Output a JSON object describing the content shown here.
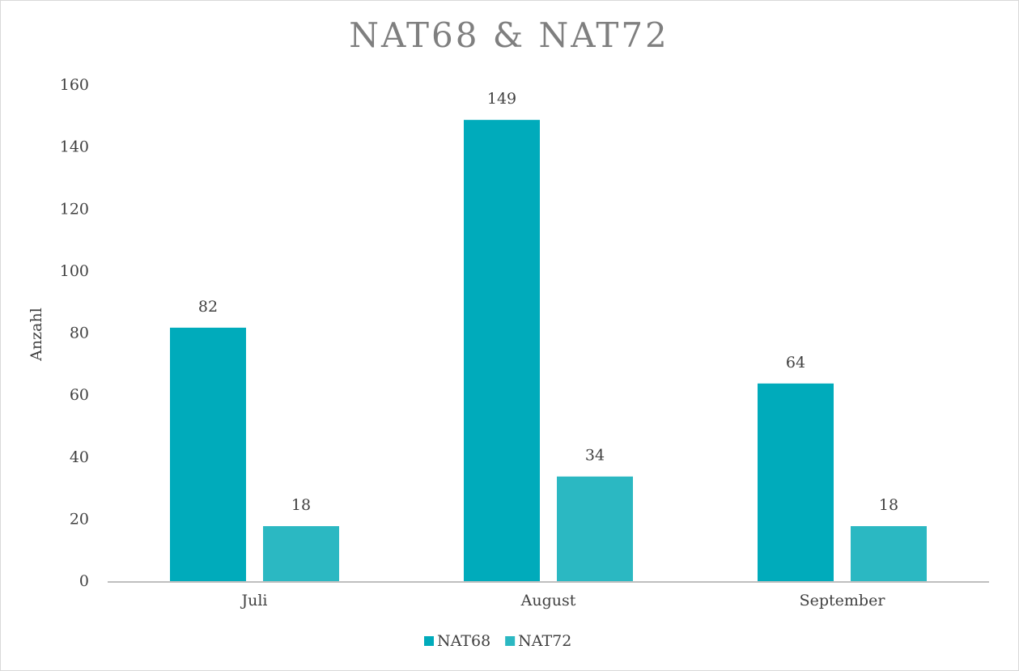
{
  "chart_data": {
    "type": "bar",
    "title": "NAT68 & NAT72",
    "y_label": "Anzahl",
    "categories": [
      "Juli",
      "August",
      "September"
    ],
    "series": [
      {
        "name": "NAT68",
        "color": "#00abbb",
        "values": [
          82,
          149,
          64
        ]
      },
      {
        "name": "NAT72",
        "color": "#2bb8c2",
        "values": [
          18,
          34,
          18
        ]
      }
    ],
    "ylim": [
      0,
      160
    ],
    "yticks": [
      0,
      20,
      40,
      60,
      80,
      100,
      120,
      140,
      160
    ],
    "grid": false,
    "legend": "bottom"
  }
}
